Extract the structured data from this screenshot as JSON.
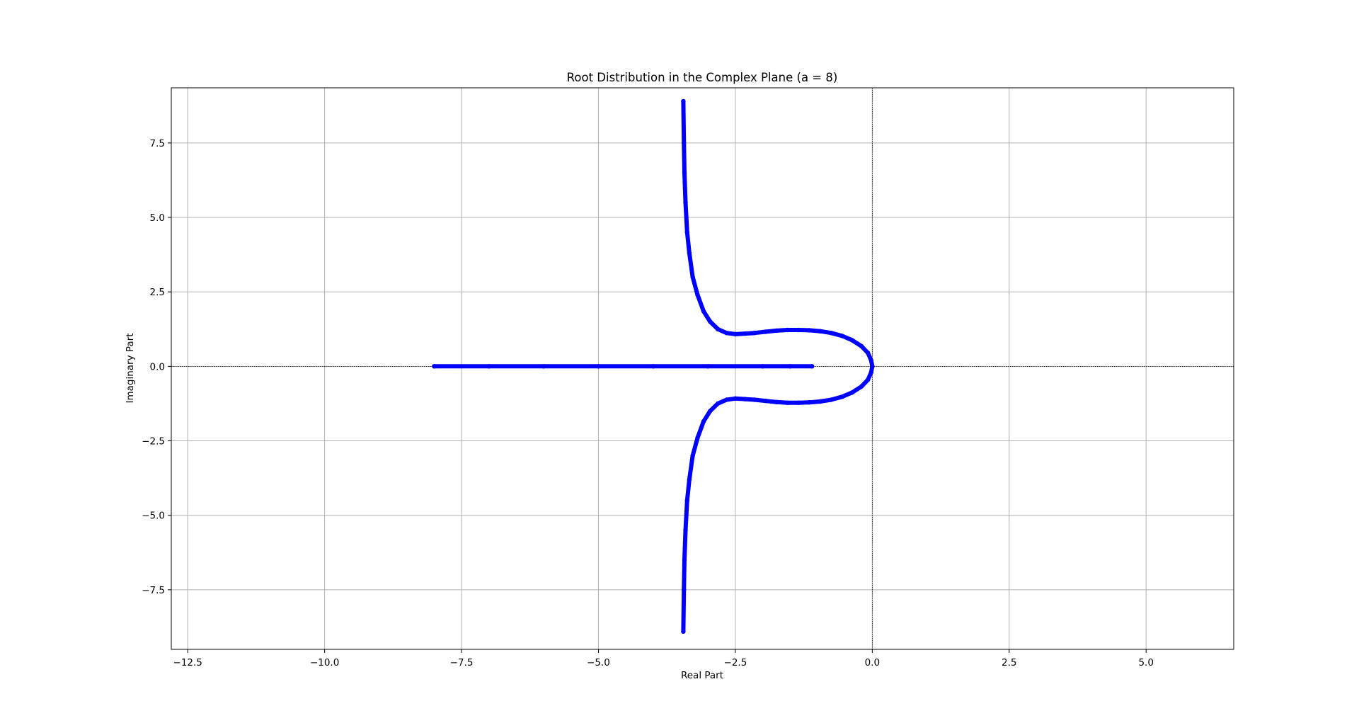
{
  "chart_data": {
    "type": "scatter",
    "title": "Root Distribution in the Complex Plane (a = 8)",
    "xlabel": "Real Part",
    "ylabel": "Imaginary Part",
    "xlim": [
      -12.8,
      6.6
    ],
    "ylim": [
      -9.5,
      9.35
    ],
    "xticks": [
      -12.5,
      -10.0,
      -7.5,
      -5.0,
      -2.5,
      0.0,
      2.5,
      5.0
    ],
    "xtick_labels": [
      "−12.5",
      "−10.0",
      "−7.5",
      "−5.0",
      "−2.5",
      "0.0",
      "2.5",
      "5.0"
    ],
    "yticks": [
      -7.5,
      -5.0,
      -2.5,
      0.0,
      2.5,
      5.0,
      7.5
    ],
    "ytick_labels": [
      "−7.5",
      "−5.0",
      "−2.5",
      "0.0",
      "2.5",
      "5.0",
      "7.5"
    ],
    "grid": true,
    "reference_lines": {
      "x": 0,
      "y": 0,
      "style": "dotted"
    },
    "series": [
      {
        "color": "#0000ff",
        "x": [
          -3.45,
          -3.44,
          -3.43,
          -3.41,
          -3.38,
          -3.34,
          -3.28,
          -3.19,
          -3.08,
          -2.96,
          -2.82,
          -2.66,
          -2.5,
          -2.32,
          -2.15,
          -1.95,
          -1.75,
          -1.55,
          -1.35,
          -1.15,
          -0.95,
          -0.75,
          -0.55,
          -0.37,
          -0.2,
          -0.08,
          -0.02,
          0.0
        ],
        "y": [
          8.9,
          7.5,
          6.5,
          5.5,
          4.5,
          3.8,
          3.0,
          2.4,
          1.85,
          1.5,
          1.25,
          1.12,
          1.08,
          1.1,
          1.12,
          1.16,
          1.2,
          1.22,
          1.22,
          1.21,
          1.18,
          1.12,
          1.02,
          0.88,
          0.68,
          0.45,
          0.2,
          0.0
        ]
      },
      {
        "color": "#0000ff",
        "x": [
          -3.45,
          -3.44,
          -3.43,
          -3.41,
          -3.38,
          -3.34,
          -3.28,
          -3.19,
          -3.08,
          -2.96,
          -2.82,
          -2.66,
          -2.5,
          -2.32,
          -2.15,
          -1.95,
          -1.75,
          -1.55,
          -1.35,
          -1.15,
          -0.95,
          -0.75,
          -0.55,
          -0.37,
          -0.2,
          -0.08,
          -0.02,
          0.0
        ],
        "y": [
          -8.9,
          -7.5,
          -6.5,
          -5.5,
          -4.5,
          -3.8,
          -3.0,
          -2.4,
          -1.85,
          -1.5,
          -1.25,
          -1.12,
          -1.08,
          -1.1,
          -1.12,
          -1.16,
          -1.2,
          -1.22,
          -1.22,
          -1.21,
          -1.18,
          -1.12,
          -1.02,
          -0.88,
          -0.68,
          -0.45,
          -0.2,
          0.0
        ]
      },
      {
        "color": "#0000ff",
        "x": [
          -8.0,
          -7.0,
          -6.0,
          -5.0,
          -4.0,
          -3.0,
          -2.0,
          -1.5,
          -1.1
        ],
        "y": [
          0.0,
          0.0,
          0.0,
          0.0,
          0.0,
          0.0,
          0.0,
          0.0,
          0.0
        ]
      }
    ]
  }
}
